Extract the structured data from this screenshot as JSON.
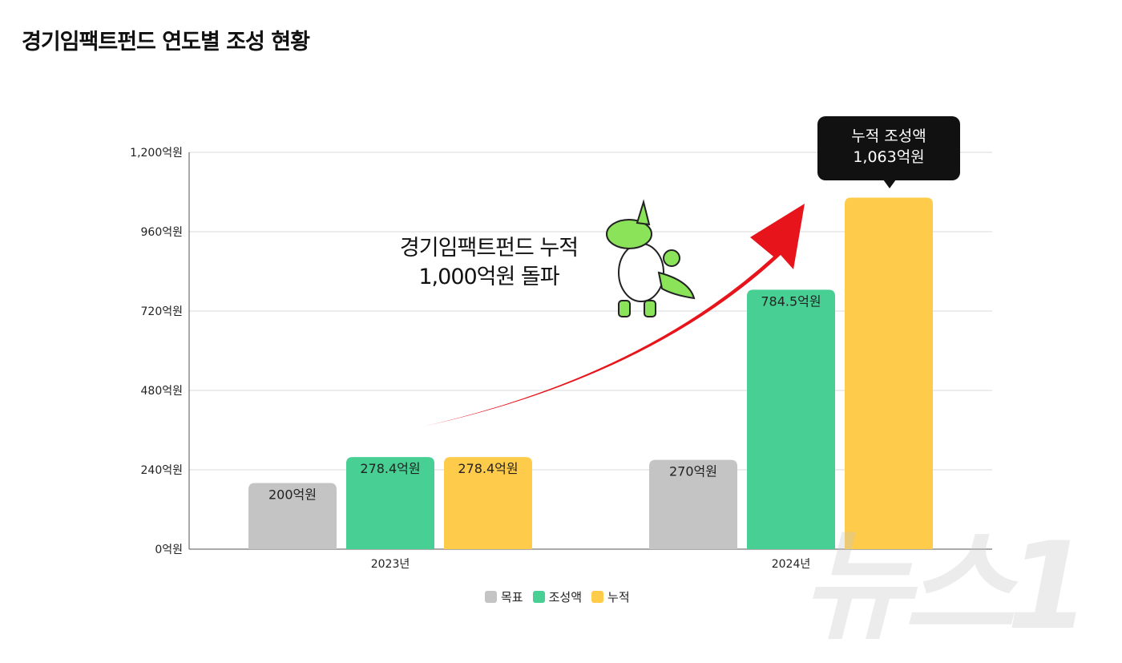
{
  "title": "경기임팩트펀드 연도별 조성 현황",
  "annotation": {
    "line1": "경기임팩트펀드 누적",
    "line2": "1,000억원 돌파"
  },
  "callout": {
    "line1": "누적 조성액",
    "line2": "1,063억원"
  },
  "watermark": "뉴스1",
  "chart_data": {
    "type": "bar",
    "title": "경기임팩트펀드 연도별 조성 현황",
    "categories": [
      "2023년",
      "2024년"
    ],
    "ylim": [
      0,
      1200
    ],
    "yticks": [
      0,
      240,
      480,
      720,
      960,
      1200
    ],
    "ytick_labels": [
      "0억원",
      "240억원",
      "480억원",
      "720억원",
      "960억원",
      "1,200억원"
    ],
    "grid": true,
    "legend_position": "bottom",
    "series": [
      {
        "name": "목표",
        "color": "#c4c4c4",
        "values": [
          200,
          270
        ],
        "labels": [
          "200억원",
          "270억원"
        ]
      },
      {
        "name": "조성액",
        "color": "#47cf94",
        "values": [
          278.4,
          784.5
        ],
        "labels": [
          "278.4억원",
          "784.5억원"
        ]
      },
      {
        "name": "누적",
        "color": "#fecb4a",
        "values": [
          278.4,
          1063
        ],
        "labels": [
          "278.4억원",
          ""
        ]
      }
    ]
  }
}
